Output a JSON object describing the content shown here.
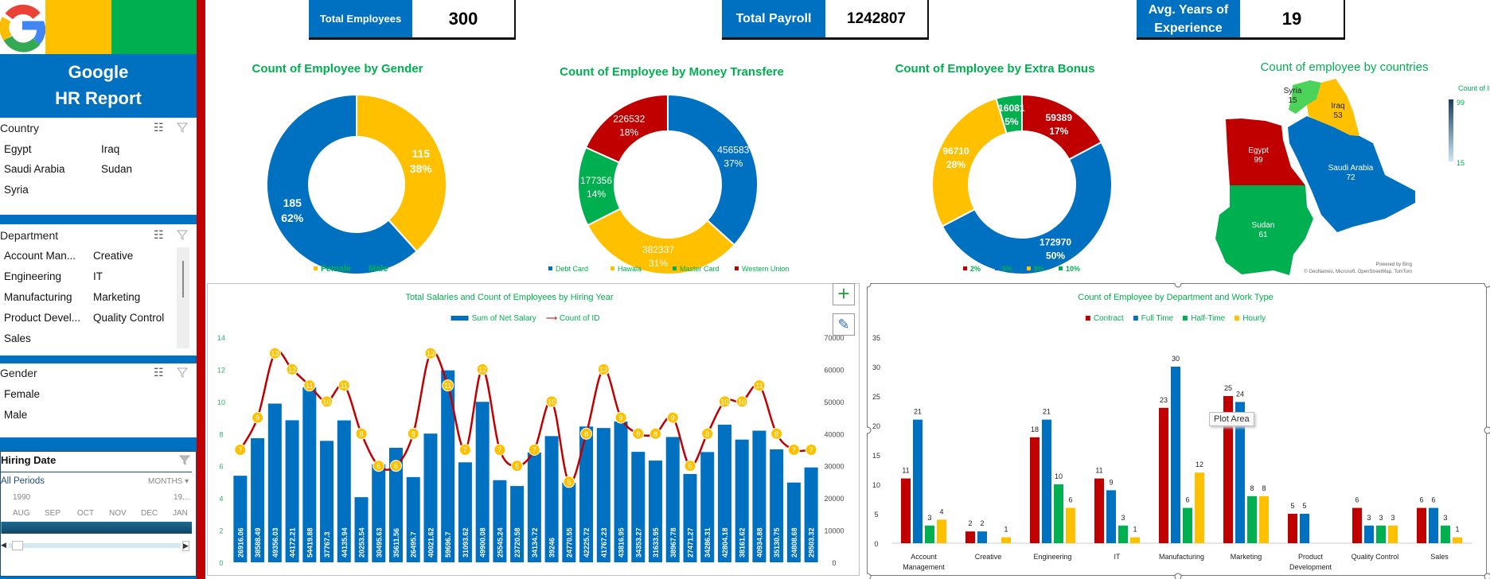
{
  "sidebar": {
    "brand_line1": "Google",
    "brand_line2": "HR Report",
    "country": {
      "title": "Country",
      "items": [
        "Egypt",
        "Iraq",
        "Saudi Arabia",
        "Sudan",
        "Syria"
      ]
    },
    "department": {
      "title": "Department",
      "items": [
        "Account Man...",
        "Creative",
        "Engineering",
        "IT",
        "Manufacturing",
        "Marketing",
        "Product Devel...",
        "Quality Control",
        "Sales"
      ]
    },
    "gender": {
      "title": "Gender",
      "items": [
        "Female",
        "Male"
      ]
    },
    "hiring": {
      "title": "Hiring Date",
      "periods": "All Periods",
      "unit": "MONTHS",
      "year_start": "1990",
      "year_end": "19...",
      "months": [
        "AUG",
        "SEP",
        "OCT",
        "NOV",
        "DEC",
        "JAN"
      ]
    }
  },
  "kpis": [
    {
      "label": "Total Employees",
      "value": "300"
    },
    {
      "label": "Total Payroll",
      "value": "1242807"
    },
    {
      "label": "Avg. Years of Experience",
      "value": "19"
    }
  ],
  "colors": {
    "blue": "#0070c0",
    "yellow": "#ffc000",
    "green": "#00b050",
    "red": "#c00000",
    "title_green": "#00b050"
  },
  "chart_data": [
    {
      "type": "pie",
      "title": "Count of Employee by Gender",
      "donut": true,
      "categories": [
        "Female",
        "Male"
      ],
      "values": [
        115,
        185
      ],
      "percents": [
        "38%",
        "62%"
      ],
      "colors": [
        "#ffc000",
        "#0070c0"
      ],
      "legend": "bottom"
    },
    {
      "type": "pie",
      "title": "Count of Employee by Money Transfere",
      "donut": true,
      "categories": [
        "Debt Card",
        "Hawala",
        "Master Card",
        "Western Union"
      ],
      "values": [
        456583,
        382337,
        177356,
        226532
      ],
      "percents": [
        "37%",
        "31%",
        "14%",
        "18%"
      ],
      "colors": [
        "#0070c0",
        "#ffc000",
        "#00b050",
        "#c00000"
      ],
      "legend": "bottom"
    },
    {
      "type": "pie",
      "title": "Count of Employee by Extra Bonus",
      "donut": true,
      "categories": [
        "2%",
        "5%",
        "8%",
        "10%"
      ],
      "values": [
        59389,
        172970,
        96710,
        16081
      ],
      "percents": [
        "17%",
        "50%",
        "28%",
        "5%"
      ],
      "colors": [
        "#c00000",
        "#0070c0",
        "#ffc000",
        "#00b050"
      ],
      "legend": "bottom"
    },
    {
      "type": "map",
      "title": "Count of employee by countries",
      "legend_title": "Count of ID",
      "range": [
        15,
        99
      ],
      "regions": [
        {
          "name": "Syria",
          "value": 15,
          "color": "#4cd35a"
        },
        {
          "name": "Iraq",
          "value": 53,
          "color": "#ffc000"
        },
        {
          "name": "Egypt",
          "value": 99,
          "color": "#c00000"
        },
        {
          "name": "Saudi Arabia",
          "value": 72,
          "color": "#0070c0"
        },
        {
          "name": "Sudan",
          "value": 61,
          "color": "#00b050"
        }
      ],
      "credit1": "Powered by Bing",
      "credit2": "© GeoNames, Microsoft, OpenStreetMap, TomTom"
    },
    {
      "type": "bar+line",
      "title": "Total Salaries and Count of Employees by Hiring Year",
      "series": [
        {
          "name": "Sum of Net Salary",
          "axis": "right",
          "values": [
            26916.06,
            38588.49,
            49356.03,
            44172.21,
            54419.88,
            37767.3,
            44135.94,
            20253.54,
            30495.63,
            35611.56,
            26495.7,
            40021.62,
            59696.7,
            31093.62,
            49900.08,
            25545.24,
            23720.58,
            34134.72,
            39246,
            24770.55,
            42225.72,
            41767.23,
            43816.95,
            34353.27,
            31633.95,
            38967.78,
            27471.27,
            34286.31,
            42804.18,
            38161.62,
            40934.88,
            35130.75,
            24808.68,
            29503.32
          ]
        },
        {
          "name": "Count of ID",
          "axis": "left",
          "values": [
            7,
            9,
            13,
            12,
            11,
            10,
            11,
            8,
            6,
            6,
            8,
            13,
            11,
            7,
            12,
            7,
            6,
            7,
            10,
            5,
            8,
            12,
            9,
            8,
            8,
            9,
            6,
            8,
            10,
            10,
            11,
            8,
            7,
            7
          ]
        }
      ],
      "ylim_left": [
        0,
        14
      ],
      "yticks_left": [
        0,
        2,
        4,
        6,
        8,
        10,
        12,
        14
      ],
      "ylim_right": [
        0,
        70000
      ],
      "yticks_right": [
        0,
        10000,
        20000,
        30000,
        40000,
        50000,
        60000,
        70000
      ],
      "legend": "top"
    },
    {
      "type": "bar",
      "title": "Count of Employee by Department and Work Type",
      "categories": [
        "Account Management",
        "Creative",
        "Engineering",
        "IT",
        "Manufacturing",
        "Marketing",
        "Product Development",
        "Quality Control",
        "Sales"
      ],
      "series": [
        {
          "name": "Contract",
          "color": "#c00000",
          "values": [
            11,
            2,
            18,
            11,
            23,
            25,
            5,
            6,
            6
          ]
        },
        {
          "name": "Full Time",
          "color": "#0070c0",
          "values": [
            21,
            2,
            21,
            9,
            30,
            24,
            5,
            3,
            6
          ]
        },
        {
          "name": "Half-Time",
          "color": "#00b050",
          "values": [
            3,
            null,
            10,
            3,
            6,
            8,
            null,
            3,
            3
          ]
        },
        {
          "name": "Hourly",
          "color": "#ffc000",
          "values": [
            4,
            1,
            6,
            1,
            12,
            8,
            null,
            3,
            1
          ]
        }
      ],
      "ylim": [
        0,
        35
      ],
      "yticks": [
        0,
        5,
        10,
        15,
        20,
        25,
        30,
        35
      ],
      "legend": "top"
    }
  ],
  "tooltip": "Plot Area"
}
